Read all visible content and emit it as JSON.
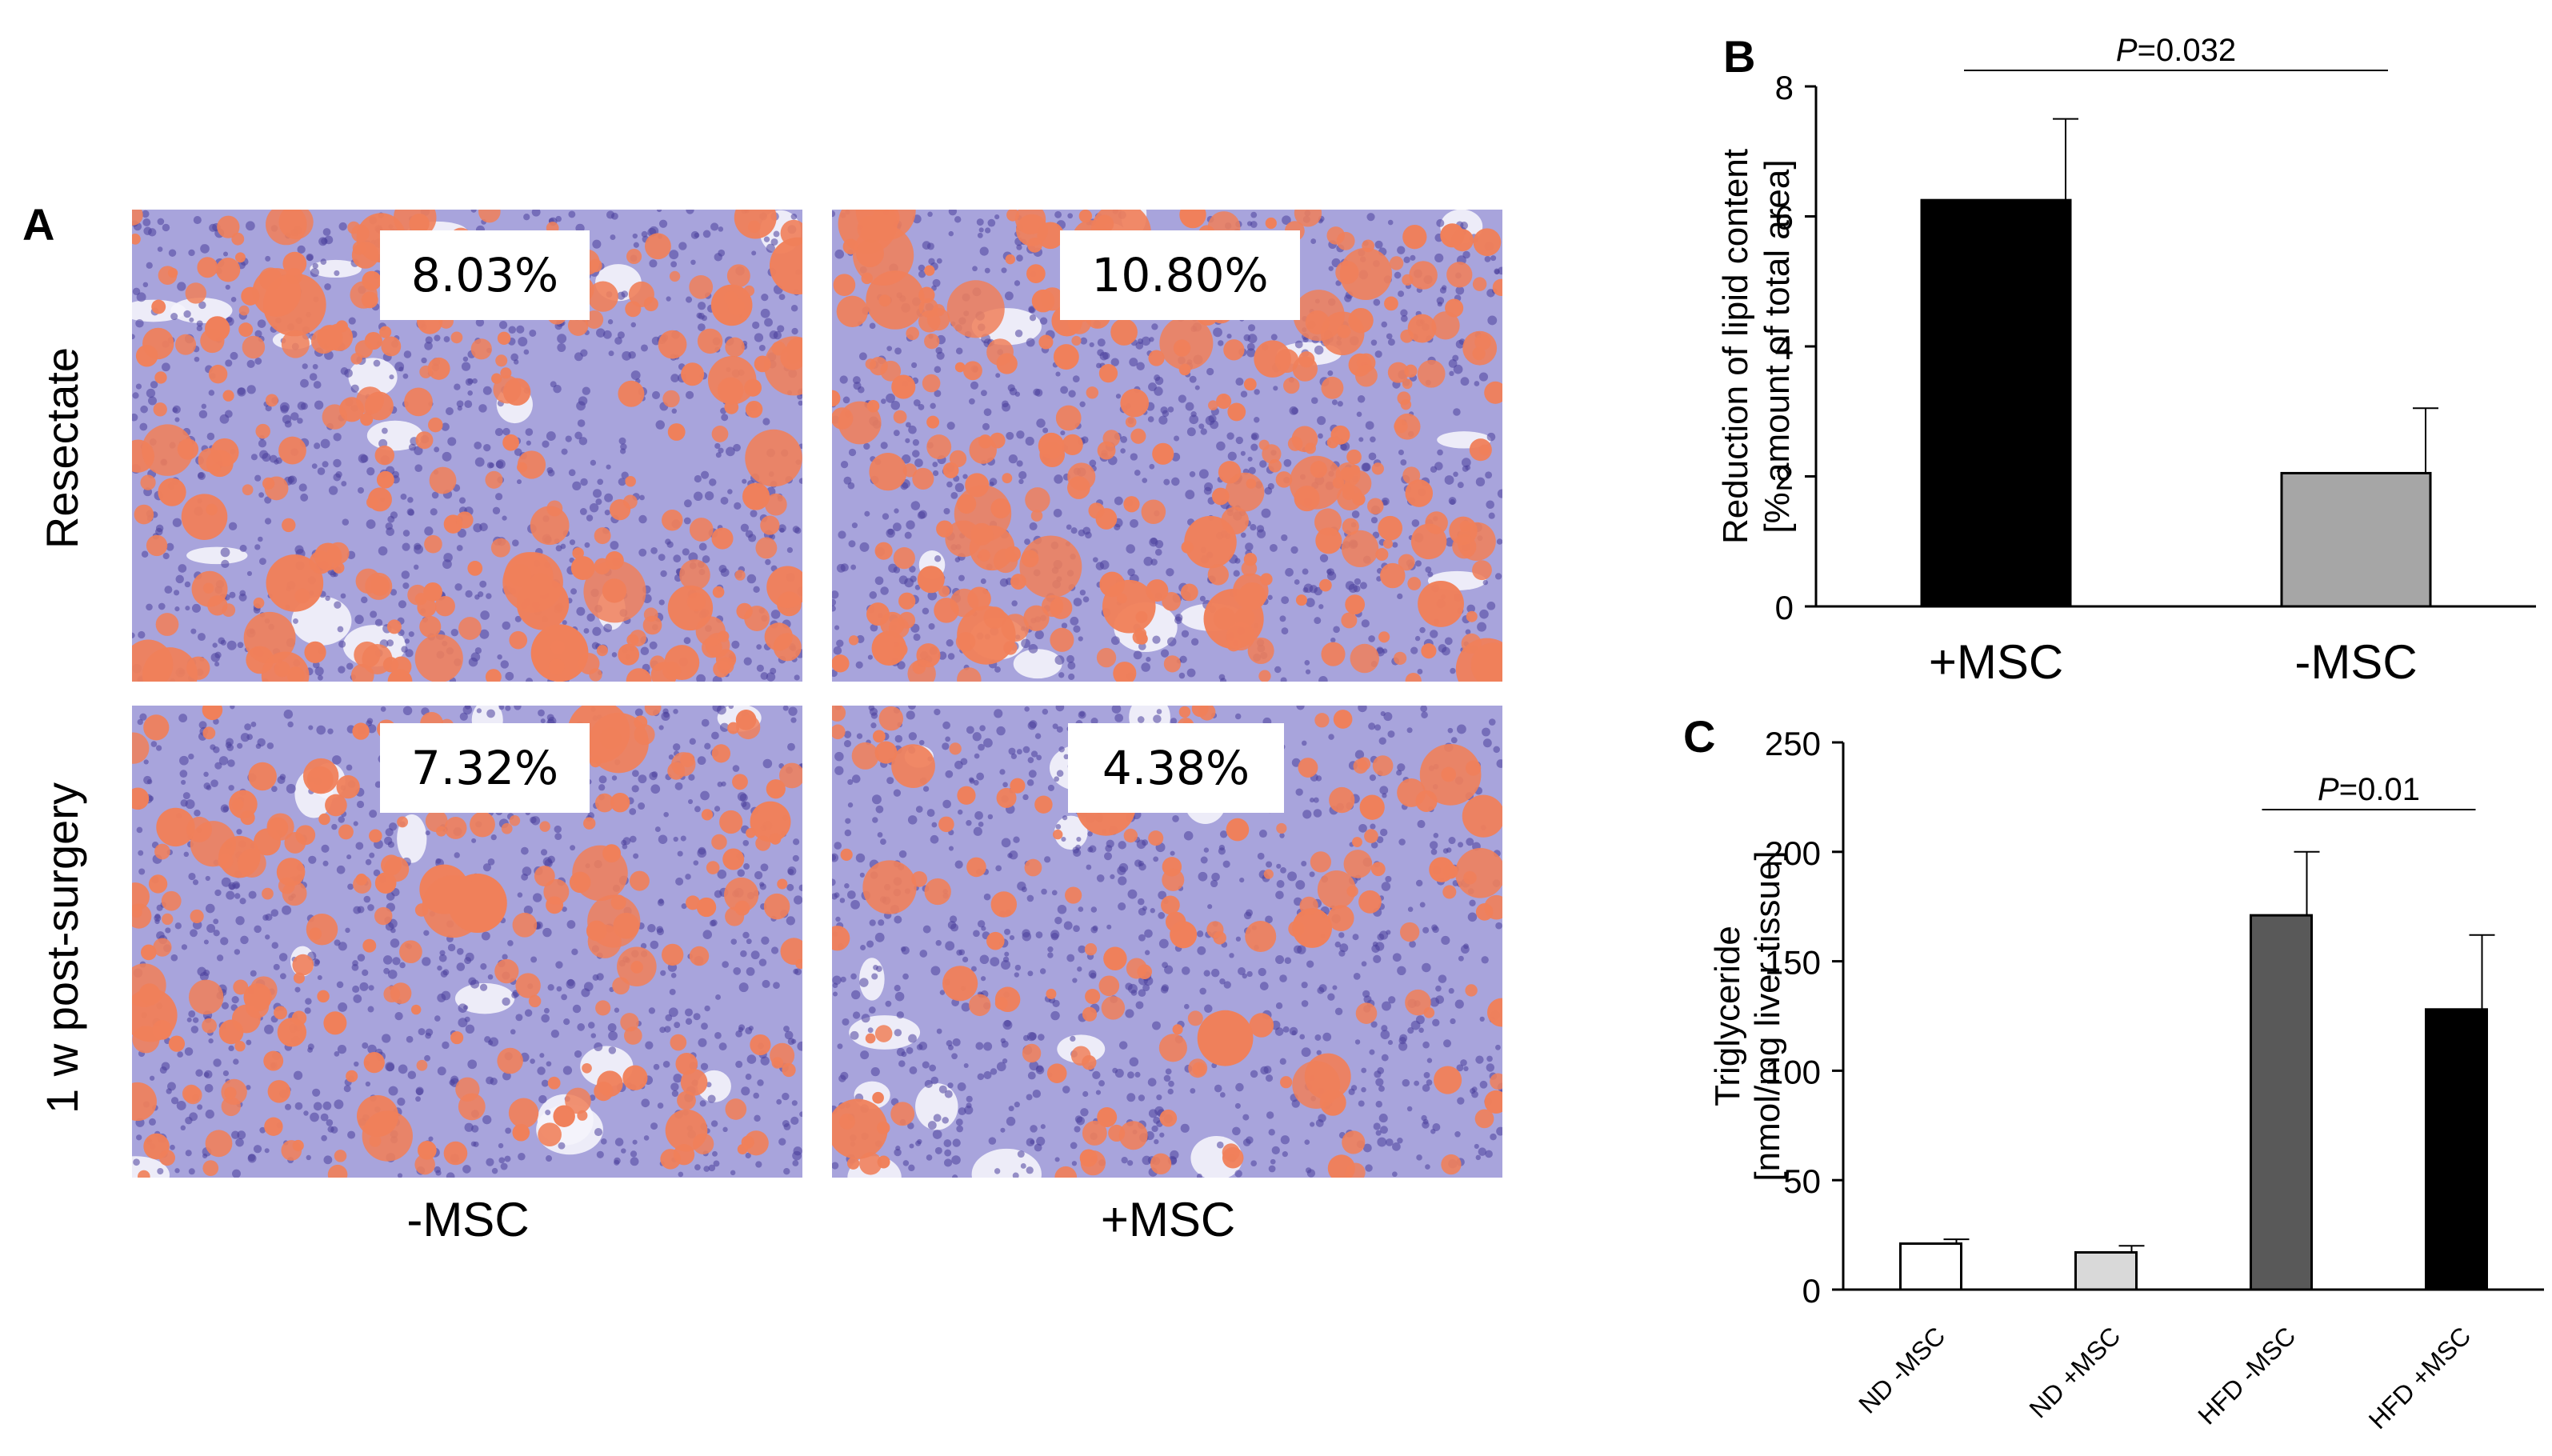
{
  "panel_a": {
    "letter": "A",
    "row_labels": [
      "Resectate",
      "1 w post-surgery"
    ],
    "col_labels": [
      "-MSC",
      "+MSC"
    ],
    "images": [
      {
        "row": "Resectate",
        "col": "-MSC",
        "value": "8.03%"
      },
      {
        "row": "Resectate",
        "col": "+MSC",
        "value": "10.80%"
      },
      {
        "row": "1 w post-surgery",
        "col": "-MSC",
        "value": "7.32%"
      },
      {
        "row": "1 w post-surgery",
        "col": "+MSC",
        "value": "4.38%"
      }
    ],
    "colors": {
      "tissue": "#a8a4dc",
      "lipid": "#f0805a",
      "nuclei": "#4b3f9c",
      "vessel": "#f4f4fb"
    }
  },
  "chart_data": [
    {
      "panel": "B",
      "type": "bar",
      "ylabel_lines": [
        "Reduction of lipid content",
        "[% amount of total area]"
      ],
      "categories": [
        "+MSC",
        "-MSC"
      ],
      "values": [
        6.25,
        2.05
      ],
      "errors": [
        1.25,
        1.0
      ],
      "colors": [
        "#000000",
        "#a6a6a6"
      ],
      "ylim": [
        0,
        8
      ],
      "yticks": [
        0,
        2,
        4,
        6,
        8
      ],
      "significance": {
        "p_italic": "P",
        "p_value": "=0.032",
        "between": [
          0,
          1
        ]
      }
    },
    {
      "panel": "C",
      "type": "bar",
      "ylabel_lines": [
        "Triglyceride",
        "[nmol/mg liver tissue]"
      ],
      "categories": [
        "ND -MSC",
        "ND +MSC",
        "HFD -MSC",
        "HFD +MSC"
      ],
      "values": [
        21,
        17,
        171,
        128
      ],
      "errors": [
        2,
        3,
        29,
        34
      ],
      "colors": [
        "#ffffff",
        "#d9d9d9",
        "#595959",
        "#000000"
      ],
      "ylim": [
        0,
        250
      ],
      "yticks": [
        0,
        50,
        100,
        150,
        200,
        250
      ],
      "significance": {
        "p_italic": "P",
        "p_value": "=0.01",
        "between": [
          2,
          3
        ]
      }
    }
  ]
}
